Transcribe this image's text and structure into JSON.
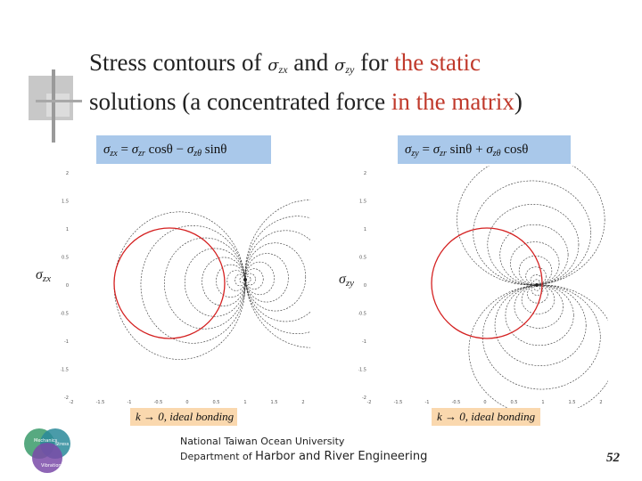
{
  "title": {
    "part1": "Stress contours of ",
    "sym1": "σ",
    "sub1": "zx",
    "and": " and ",
    "sym2": "σ",
    "sub2": "zy",
    "part2": " for ",
    "red1": "the static",
    "line2a": "solutions (a concentrated force ",
    "red2": "in the matrix",
    "line2b": ")"
  },
  "left_eq": {
    "lhs": "σ",
    "lhs_sub": "zx",
    "eq": " = ",
    "t1": "σ",
    "t1_sub": "zr",
    "cos": " cosθ − ",
    "t2": "σ",
    "t2_sub": "zθ",
    "sin": " sinθ"
  },
  "right_eq": {
    "lhs": "σ",
    "lhs_sub": "zy",
    "eq": " = ",
    "t1": "σ",
    "t1_sub": "zr",
    "sin": " sinθ + ",
    "t2": "σ",
    "t2_sub": "zθ",
    "cos": " cosθ"
  },
  "left_plot": {
    "ylabel_sym": "σ",
    "ylabel_sub": "zx",
    "x_ticks": [
      "-2",
      "-1.5",
      "-1",
      "-0.5",
      "0",
      "0.5",
      "1",
      "1.5",
      "2"
    ],
    "y_ticks": [
      "2",
      "1.5",
      "1",
      "0.5",
      "0",
      "-0.5",
      "-1",
      "-1.5",
      "-2"
    ],
    "bonding": "k → 0,  ideal  bonding"
  },
  "right_plot": {
    "ylabel_sym": "σ",
    "ylabel_sub": "zy",
    "x_ticks": [
      "-2",
      "-1.5",
      "-1",
      "-0.5",
      "0",
      "0.5",
      "1",
      "1.5",
      "2"
    ],
    "y_ticks": [
      "2",
      "1.5",
      "1",
      "0.5",
      "0",
      "-0.5",
      "-1",
      "-1.5",
      "-2"
    ],
    "bonding": "k → 0,  ideal  bonding"
  },
  "footer": {
    "line1": "National Taiwan Ocean University",
    "line2a": "Department of ",
    "line2b": "Harbor and River Engineering"
  },
  "page_number": "52",
  "logo": {
    "l1": "Mechanics",
    "l2": "Stress",
    "l3": "Vibration"
  },
  "colors": {
    "circle": "#d42020",
    "eq_box": "#a9c8ea",
    "k_box": "#fad8ae",
    "title_red": "#c0392b"
  }
}
